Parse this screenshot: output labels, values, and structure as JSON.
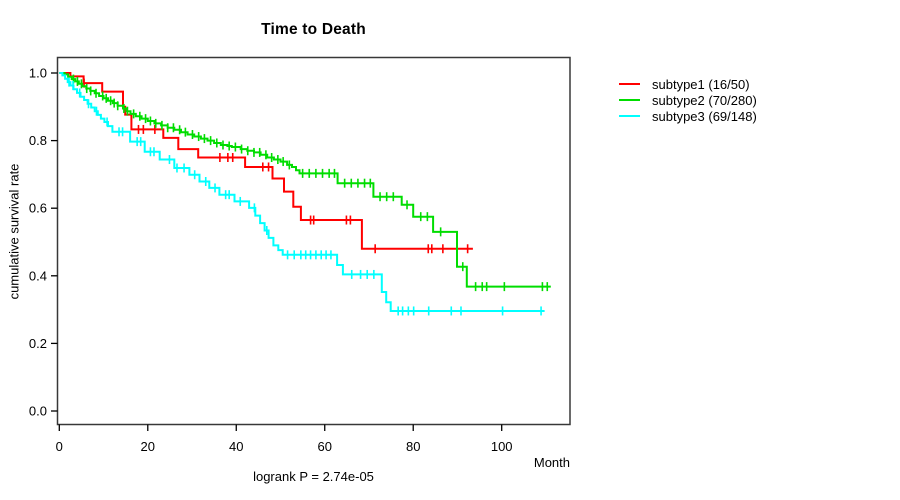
{
  "chart_data": {
    "type": "line",
    "subtype": "kaplan-meier-step-survival",
    "title": "Time to Death",
    "xlabel": "Month",
    "ylabel": "cumulative survival rate",
    "annotation": "logrank P = 2.74e-05",
    "xlim": [
      0,
      115
    ],
    "ylim": [
      0,
      1
    ],
    "x_ticks": [
      0,
      20,
      40,
      60,
      80,
      100
    ],
    "y_ticks": [
      0.0,
      0.2,
      0.4,
      0.6,
      0.8,
      1.0
    ],
    "grid": false,
    "legend_position": "right-outside",
    "series": [
      {
        "name": "subtype1",
        "legend_label": "subtype1 (16/50)",
        "events": 16,
        "n": 50,
        "color": "#ff0000",
        "steps": [
          [
            0,
            1.0
          ],
          [
            2.5,
            0.99
          ],
          [
            5.5,
            0.97
          ],
          [
            9.7,
            0.945
          ],
          [
            14.4,
            0.9
          ],
          [
            14.9,
            0.877
          ],
          [
            16.3,
            0.833
          ],
          [
            23.5,
            0.808
          ],
          [
            26.9,
            0.775
          ],
          [
            31.4,
            0.75
          ],
          [
            42.0,
            0.722
          ],
          [
            48.2,
            0.688
          ],
          [
            50.8,
            0.649
          ],
          [
            52.9,
            0.604
          ],
          [
            54.6,
            0.565
          ],
          [
            68.4,
            0.48
          ]
        ],
        "end_month": 93.5,
        "censor_months": [
          5.6,
          17.9,
          19.0,
          21.6,
          36.3,
          38.1,
          39.2,
          46.0,
          47.3,
          56.8,
          57.5,
          64.9,
          65.8,
          71.4,
          83.4,
          84.2,
          86.7,
          92.3
        ]
      },
      {
        "name": "subtype2",
        "legend_label": "subtype2 (70/280)",
        "events": 70,
        "n": 280,
        "color": "#00dd00",
        "steps": [
          [
            0,
            1.0
          ],
          [
            1.2,
            0.996
          ],
          [
            2.0,
            0.989
          ],
          [
            2.8,
            0.982
          ],
          [
            3.6,
            0.975
          ],
          [
            4.4,
            0.968
          ],
          [
            5.2,
            0.961
          ],
          [
            6.1,
            0.954
          ],
          [
            7.0,
            0.947
          ],
          [
            8.0,
            0.94
          ],
          [
            9.0,
            0.932
          ],
          [
            10.0,
            0.925
          ],
          [
            11.0,
            0.918
          ],
          [
            12.1,
            0.911
          ],
          [
            13.2,
            0.903
          ],
          [
            14.4,
            0.895
          ],
          [
            15.2,
            0.887
          ],
          [
            16.1,
            0.879
          ],
          [
            17.3,
            0.872
          ],
          [
            18.6,
            0.865
          ],
          [
            20.0,
            0.858
          ],
          [
            21.5,
            0.851
          ],
          [
            23.0,
            0.845
          ],
          [
            24.5,
            0.838
          ],
          [
            26.0,
            0.832
          ],
          [
            27.5,
            0.825
          ],
          [
            29.0,
            0.818
          ],
          [
            30.5,
            0.812
          ],
          [
            32.0,
            0.806
          ],
          [
            33.5,
            0.8
          ],
          [
            35.0,
            0.793
          ],
          [
            36.5,
            0.787
          ],
          [
            38.0,
            0.784
          ],
          [
            39.0,
            0.781
          ],
          [
            41.0,
            0.775
          ],
          [
            42.5,
            0.77
          ],
          [
            44.0,
            0.765
          ],
          [
            45.5,
            0.758
          ],
          [
            47.0,
            0.75
          ],
          [
            48.5,
            0.744
          ],
          [
            50.0,
            0.738
          ],
          [
            51.5,
            0.728
          ],
          [
            52.6,
            0.722
          ],
          [
            53.5,
            0.712
          ],
          [
            54.3,
            0.703
          ],
          [
            62.9,
            0.674
          ],
          [
            71.0,
            0.634
          ],
          [
            77.4,
            0.61
          ],
          [
            80.0,
            0.575
          ],
          [
            84.5,
            0.53
          ],
          [
            89.9,
            0.427
          ],
          [
            92.1,
            0.368
          ]
        ],
        "end_month": 111.1,
        "censor_months": [
          3.2,
          4.1,
          5.0,
          6.2,
          7.1,
          8.3,
          9.8,
          10.6,
          11.6,
          12.4,
          13.2,
          14.6,
          15.4,
          16.8,
          18.2,
          19.5,
          20.6,
          21.8,
          23.2,
          24.5,
          25.8,
          27.2,
          28.5,
          30.1,
          31.5,
          32.8,
          34.2,
          35.6,
          37.0,
          38.4,
          39.8,
          41.2,
          42.6,
          44.0,
          45.3,
          46.7,
          48.0,
          49.4,
          50.6,
          52.0,
          55.0,
          56.5,
          58.0,
          59.5,
          61.0,
          62.2,
          64.5,
          66.0,
          67.5,
          69.0,
          70.3,
          72.5,
          74.0,
          75.5,
          78.6,
          81.7,
          83.2,
          86.2,
          91.2,
          94.1,
          95.6,
          96.6,
          100.6,
          109.2,
          110.3
        ]
      },
      {
        "name": "subtype3",
        "legend_label": "subtype3 (69/148)",
        "events": 69,
        "n": 148,
        "color": "#00ffff",
        "steps": [
          [
            0,
            1.0
          ],
          [
            0.7,
            0.993
          ],
          [
            1.3,
            0.983
          ],
          [
            1.9,
            0.973
          ],
          [
            2.5,
            0.963
          ],
          [
            3.2,
            0.952
          ],
          [
            4.0,
            0.941
          ],
          [
            4.8,
            0.93
          ],
          [
            5.6,
            0.92
          ],
          [
            6.4,
            0.909
          ],
          [
            7.2,
            0.898
          ],
          [
            8.0,
            0.887
          ],
          [
            8.7,
            0.876
          ],
          [
            9.4,
            0.865
          ],
          [
            10.2,
            0.855
          ],
          [
            11.0,
            0.843
          ],
          [
            12.0,
            0.826
          ],
          [
            16.0,
            0.797
          ],
          [
            19.3,
            0.767
          ],
          [
            22.7,
            0.744
          ],
          [
            26.0,
            0.719
          ],
          [
            29.4,
            0.699
          ],
          [
            31.7,
            0.679
          ],
          [
            33.9,
            0.66
          ],
          [
            36.2,
            0.64
          ],
          [
            39.6,
            0.62
          ],
          [
            42.9,
            0.601
          ],
          [
            44.3,
            0.578
          ],
          [
            45.4,
            0.556
          ],
          [
            46.4,
            0.534
          ],
          [
            47.3,
            0.512
          ],
          [
            48.4,
            0.49
          ],
          [
            49.5,
            0.476
          ],
          [
            50.5,
            0.462
          ],
          [
            62.8,
            0.432
          ],
          [
            64.1,
            0.404
          ],
          [
            72.9,
            0.352
          ],
          [
            73.9,
            0.322
          ],
          [
            74.9,
            0.296
          ]
        ],
        "end_month": 109.7,
        "censor_months": [
          2.2,
          3.1,
          4.6,
          6.6,
          8.4,
          10.8,
          13.5,
          14.3,
          17.6,
          18.4,
          20.6,
          21.4,
          24.9,
          26.6,
          28.2,
          30.6,
          33.1,
          35.2,
          37.6,
          38.4,
          40.9,
          44.1,
          46.9,
          51.6,
          53.1,
          54.6,
          55.7,
          56.8,
          58.0,
          59.2,
          60.3,
          61.4,
          66.1,
          68.1,
          69.6,
          71.1,
          76.6,
          77.6,
          78.9,
          80.1,
          83.5,
          88.6,
          90.8,
          100.2,
          108.9
        ]
      }
    ]
  }
}
